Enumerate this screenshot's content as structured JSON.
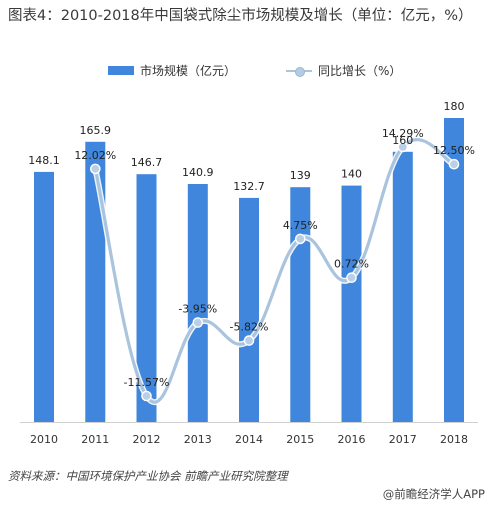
{
  "title": "图表4：2010-2018年中国袋式除尘市场规模及增长（单位：亿元，%）",
  "legend": {
    "bar_label": "市场规模（亿元）",
    "line_label": "同比增长（%）"
  },
  "colors": {
    "bar": "#3f86dc",
    "line": "#aac4de",
    "marker": "#b9d0e6"
  },
  "chart_data": {
    "type": "bar",
    "categories": [
      "2010",
      "2011",
      "2012",
      "2013",
      "2014",
      "2015",
      "2016",
      "2017",
      "2018"
    ],
    "series": [
      {
        "name": "市场规模（亿元）",
        "type": "bar",
        "values": [
          148.1,
          165.9,
          146.7,
          140.9,
          132.7,
          139,
          140,
          160,
          180
        ],
        "labels": [
          "148.1",
          "165.9",
          "146.7",
          "140.9",
          "132.7",
          "139",
          "140",
          "160",
          "180"
        ]
      },
      {
        "name": "同比增长（%）",
        "type": "line",
        "smooth": true,
        "x": [
          "2011",
          "2012",
          "2013",
          "2014",
          "2015",
          "2016",
          "2017",
          "2018"
        ],
        "values": [
          12.02,
          -11.57,
          -3.95,
          -5.82,
          4.75,
          0.72,
          14.29,
          12.5
        ],
        "labels": [
          "12.02%",
          "-11.57%",
          "-3.95%",
          "-5.82%",
          "4.75%",
          "0.72%",
          "14.29%",
          "12.50%"
        ]
      }
    ],
    "legend_position": "top-center",
    "grid": false
  },
  "footer": {
    "source": "资料来源：中国环境保护产业协会 前瞻产业研究院整理",
    "brand": "@前瞻经济学人APP"
  }
}
